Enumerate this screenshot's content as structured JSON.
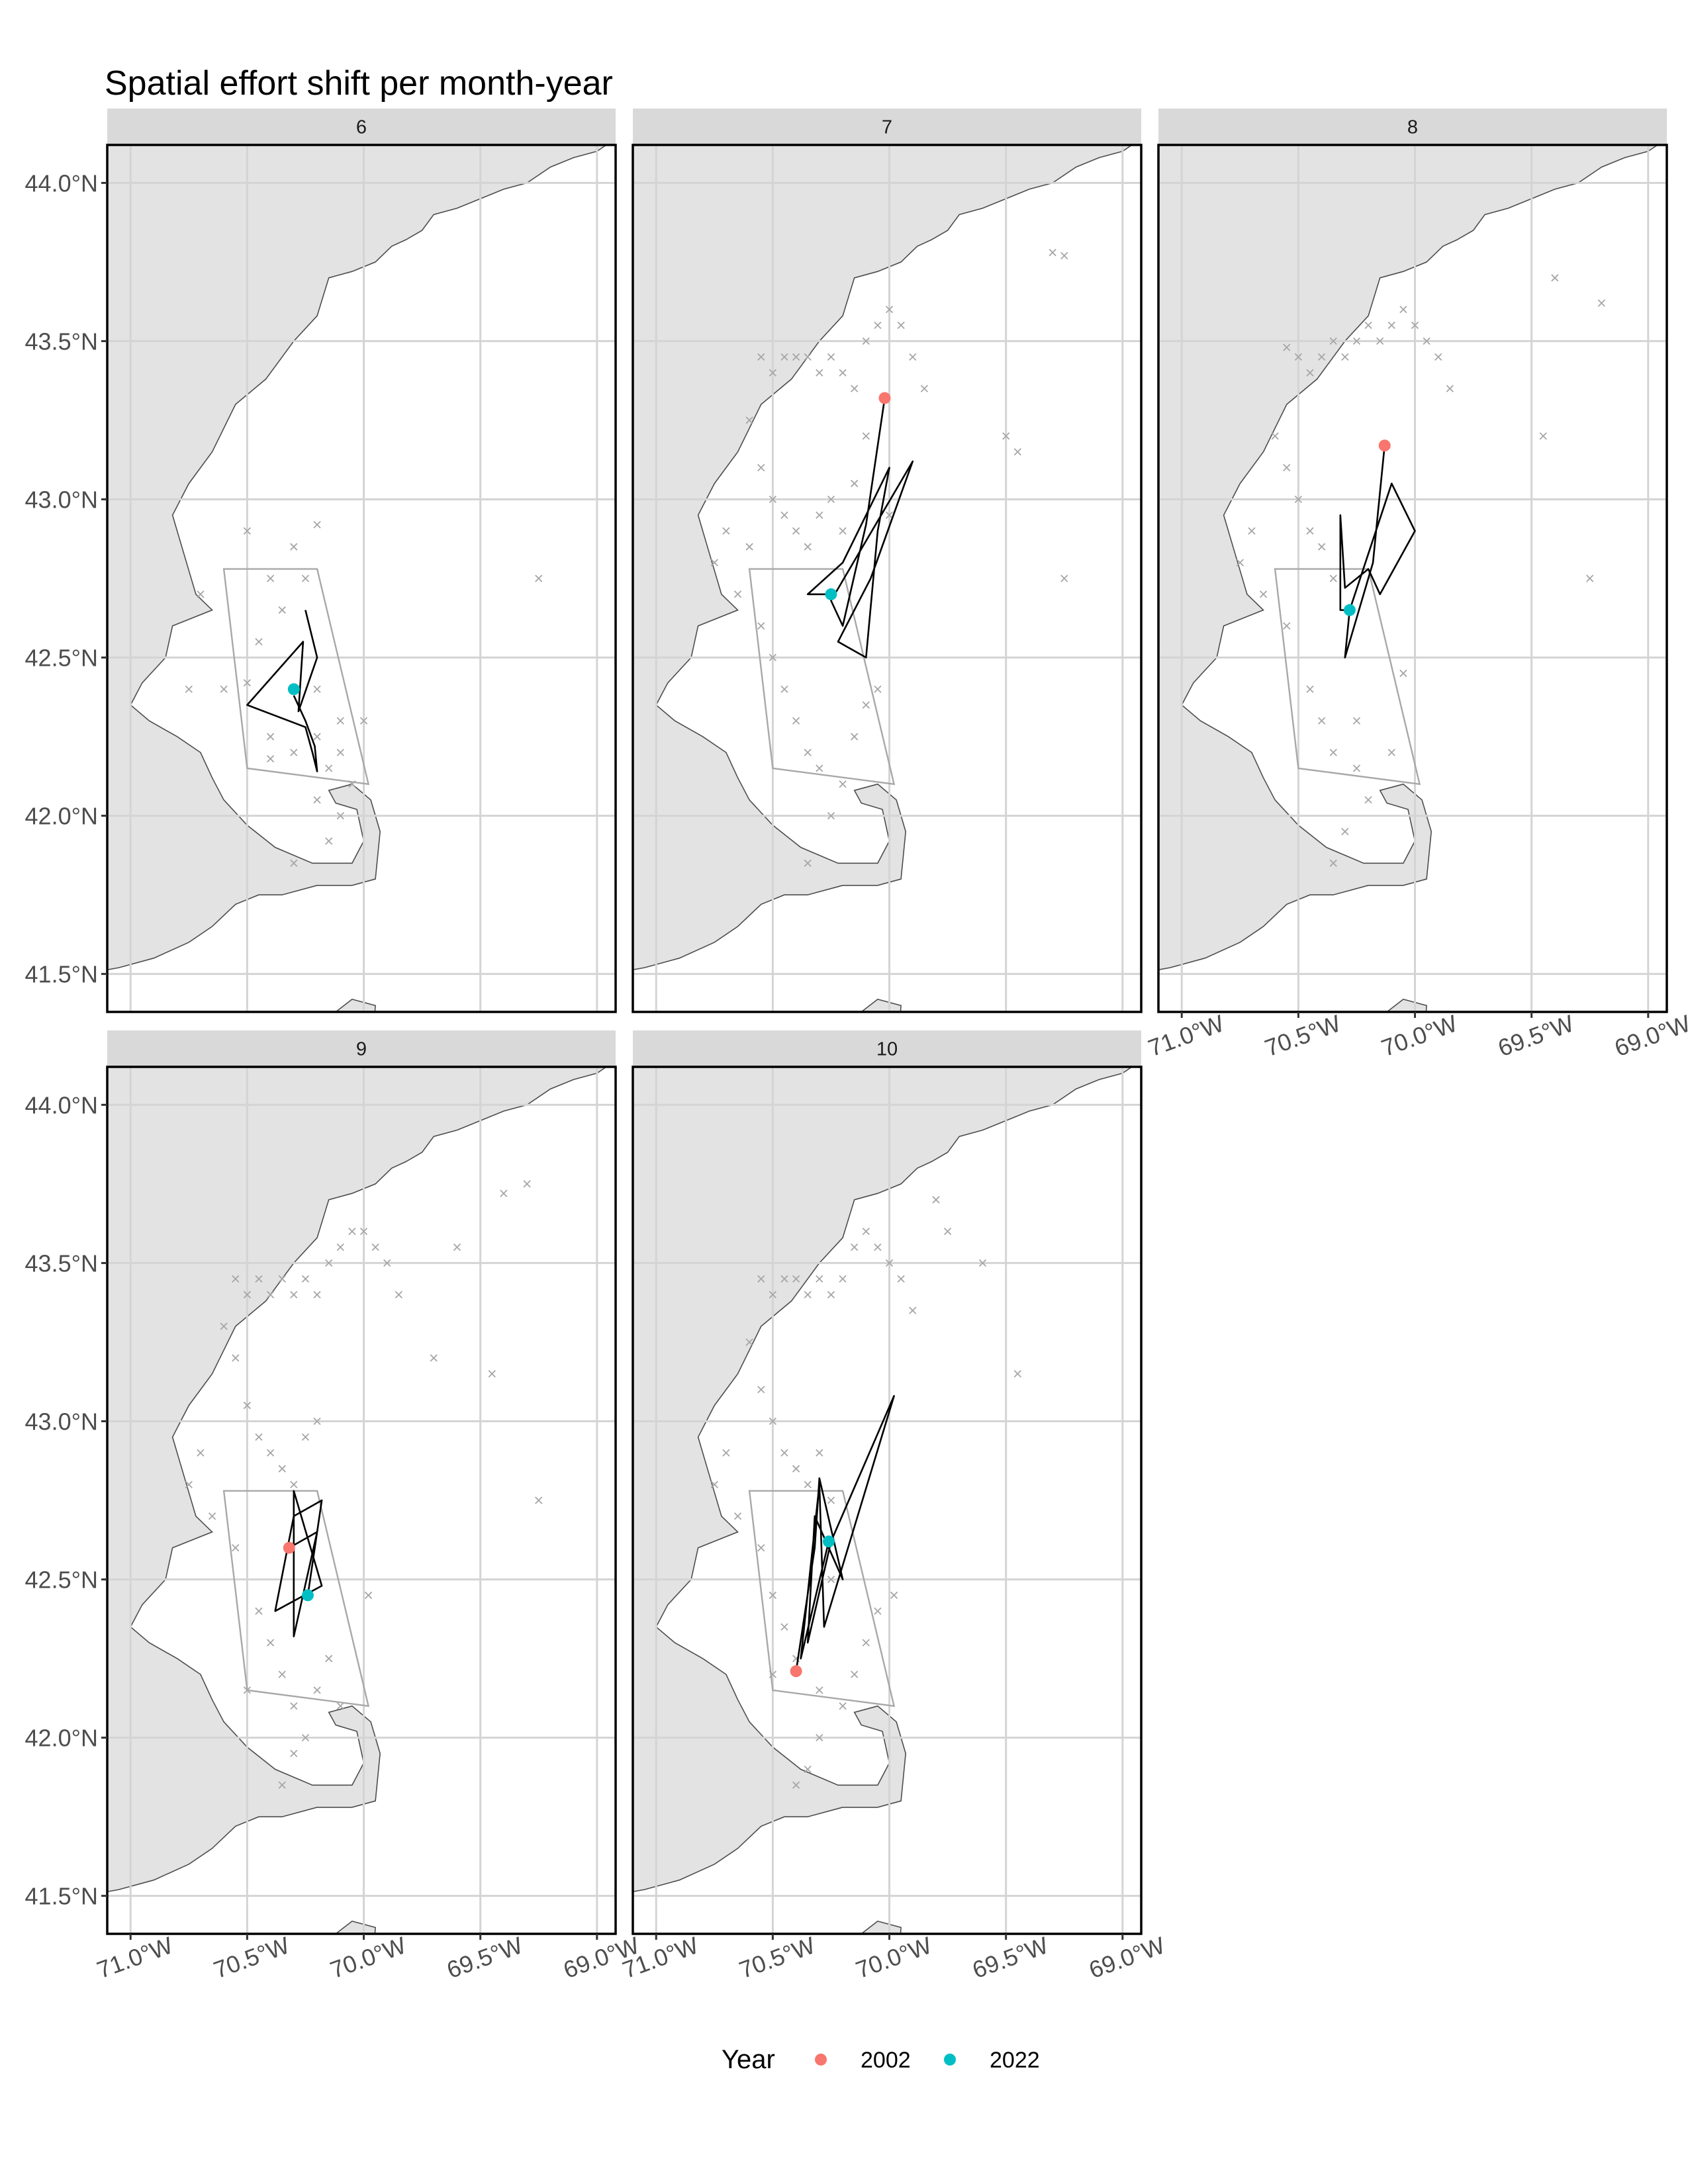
{
  "chart_data": {
    "type": "scatter",
    "title": "Spatial effort shift per month-year",
    "xlabel": "",
    "ylabel": "",
    "xlim": [
      -71.1,
      -68.92
    ],
    "ylim": [
      41.38,
      44.12
    ],
    "x_ticks": [
      -71.0,
      -70.5,
      -70.0,
      -69.5,
      -69.0
    ],
    "x_tick_labels": [
      "71.0°W",
      "70.5°W",
      "70.0°W",
      "69.5°W",
      "69.0°W"
    ],
    "y_ticks": [
      41.5,
      42.0,
      42.5,
      43.0,
      43.5,
      44.0
    ],
    "y_tick_labels": [
      "41.5°N",
      "42.0°N",
      "42.5°N",
      "43.0°N",
      "43.5°N",
      "44.0°N"
    ],
    "grid": true,
    "legend": {
      "title": "Year",
      "placement": "bottom",
      "entries": [
        {
          "label": "2002",
          "color": "#F8766D"
        },
        {
          "label": "2022",
          "color": "#00BFC4"
        }
      ]
    },
    "colors": {
      "land": "#e3e3e3",
      "coast_line": "#4d4d4d",
      "grid": "#d4d4d4",
      "effort_marks": "#a6a6a6",
      "region_outline": "#a8a8a8",
      "track": "#000000",
      "strip": "#d9d9d9",
      "panel_border": "#000000"
    },
    "region_polygon": [
      [
        -70.6,
        42.78
      ],
      [
        -70.2,
        42.78
      ],
      [
        -69.98,
        42.1
      ],
      [
        -70.5,
        42.15
      ]
    ],
    "facets": [
      {
        "label": "6",
        "points": [
          {
            "year": "2022",
            "x": -70.3,
            "y": 42.4
          }
        ],
        "track": [
          [
            -70.25,
            42.65
          ],
          [
            -70.2,
            42.5
          ],
          [
            -70.28,
            42.33
          ],
          [
            -70.26,
            42.55
          ],
          [
            -70.5,
            42.35
          ],
          [
            -70.25,
            42.28
          ],
          [
            -70.22,
            42.2
          ],
          [
            -70.2,
            42.14
          ],
          [
            -70.21,
            42.22
          ],
          [
            -70.25,
            42.3
          ],
          [
            -70.3,
            42.38
          ]
        ],
        "effort": [
          [
            -70.5,
            42.9
          ],
          [
            -70.4,
            42.75
          ],
          [
            -70.3,
            42.85
          ],
          [
            -70.2,
            42.92
          ],
          [
            -70.35,
            42.65
          ],
          [
            -70.45,
            42.55
          ],
          [
            -70.5,
            42.42
          ],
          [
            -70.6,
            42.4
          ],
          [
            -70.2,
            42.4
          ],
          [
            -70.1,
            42.3
          ],
          [
            -70.2,
            42.25
          ],
          [
            -70.3,
            42.2
          ],
          [
            -70.15,
            42.15
          ],
          [
            -70.1,
            42.2
          ],
          [
            -70.05,
            42.1
          ],
          [
            -70.2,
            42.05
          ],
          [
            -70.0,
            42.3
          ],
          [
            -70.1,
            42.0
          ],
          [
            -70.15,
            41.92
          ],
          [
            -70.3,
            41.85
          ],
          [
            -69.25,
            42.75
          ],
          [
            -70.25,
            42.75
          ],
          [
            -70.4,
            42.25
          ],
          [
            -70.4,
            42.18
          ],
          [
            -70.75,
            42.4
          ],
          [
            -70.7,
            42.7
          ]
        ]
      },
      {
        "label": "7",
        "points": [
          {
            "year": "2002",
            "x": -70.02,
            "y": 43.32
          },
          {
            "year": "2022",
            "x": -70.25,
            "y": 42.7
          }
        ],
        "track": [
          [
            -70.02,
            43.32
          ],
          [
            -70.1,
            42.92
          ],
          [
            -70.2,
            42.6
          ],
          [
            -70.25,
            42.68
          ],
          [
            -69.9,
            43.12
          ],
          [
            -70.08,
            42.75
          ],
          [
            -70.22,
            42.55
          ],
          [
            -70.1,
            42.5
          ],
          [
            -70.05,
            42.9
          ],
          [
            -70.0,
            43.1
          ],
          [
            -70.2,
            42.8
          ],
          [
            -70.35,
            42.7
          ],
          [
            -70.25,
            42.7
          ]
        ],
        "effort": [
          [
            -70.55,
            43.45
          ],
          [
            -70.5,
            43.4
          ],
          [
            -70.45,
            43.45
          ],
          [
            -70.4,
            43.45
          ],
          [
            -70.35,
            43.45
          ],
          [
            -70.3,
            43.4
          ],
          [
            -70.25,
            43.45
          ],
          [
            -70.2,
            43.4
          ],
          [
            -70.15,
            43.35
          ],
          [
            -70.1,
            43.5
          ],
          [
            -70.05,
            43.55
          ],
          [
            -70.0,
            43.6
          ],
          [
            -69.95,
            43.55
          ],
          [
            -69.9,
            43.45
          ],
          [
            -69.85,
            43.35
          ],
          [
            -69.3,
            43.78
          ],
          [
            -69.25,
            43.77
          ],
          [
            -69.5,
            43.2
          ],
          [
            -69.45,
            43.15
          ],
          [
            -70.6,
            43.25
          ],
          [
            -70.55,
            43.1
          ],
          [
            -70.5,
            43.0
          ],
          [
            -70.45,
            42.95
          ],
          [
            -70.4,
            42.9
          ],
          [
            -70.35,
            42.85
          ],
          [
            -70.3,
            42.95
          ],
          [
            -70.25,
            43.0
          ],
          [
            -70.2,
            42.9
          ],
          [
            -70.6,
            42.85
          ],
          [
            -70.7,
            42.9
          ],
          [
            -70.75,
            42.8
          ],
          [
            -70.65,
            42.7
          ],
          [
            -70.55,
            42.6
          ],
          [
            -70.5,
            42.5
          ],
          [
            -70.45,
            42.4
          ],
          [
            -70.4,
            42.3
          ],
          [
            -70.35,
            42.2
          ],
          [
            -70.3,
            42.15
          ],
          [
            -70.2,
            42.1
          ],
          [
            -70.15,
            42.25
          ],
          [
            -70.1,
            42.35
          ],
          [
            -70.05,
            42.4
          ],
          [
            -70.25,
            42.0
          ],
          [
            -70.35,
            41.85
          ],
          [
            -69.25,
            42.75
          ],
          [
            -70.15,
            43.05
          ],
          [
            -70.1,
            43.2
          ],
          [
            -70.0,
            42.95
          ]
        ]
      },
      {
        "label": "8",
        "points": [
          {
            "year": "2002",
            "x": -70.13,
            "y": 43.17
          },
          {
            "year": "2022",
            "x": -70.28,
            "y": 42.65
          }
        ],
        "track": [
          [
            -70.13,
            43.17
          ],
          [
            -70.18,
            42.8
          ],
          [
            -70.3,
            42.5
          ],
          [
            -70.28,
            42.65
          ],
          [
            -70.1,
            43.05
          ],
          [
            -70.0,
            42.9
          ],
          [
            -70.15,
            42.7
          ],
          [
            -70.2,
            42.78
          ],
          [
            -70.3,
            42.72
          ],
          [
            -70.32,
            42.95
          ],
          [
            -70.32,
            42.65
          ],
          [
            -70.28,
            42.65
          ]
        ],
        "effort": [
          [
            -70.55,
            43.48
          ],
          [
            -70.5,
            43.45
          ],
          [
            -70.45,
            43.4
          ],
          [
            -70.4,
            43.45
          ],
          [
            -70.35,
            43.5
          ],
          [
            -70.3,
            43.45
          ],
          [
            -70.25,
            43.5
          ],
          [
            -70.2,
            43.55
          ],
          [
            -70.15,
            43.5
          ],
          [
            -70.1,
            43.55
          ],
          [
            -70.05,
            43.6
          ],
          [
            -70.0,
            43.55
          ],
          [
            -69.95,
            43.5
          ],
          [
            -69.9,
            43.45
          ],
          [
            -69.85,
            43.35
          ],
          [
            -69.4,
            43.7
          ],
          [
            -69.2,
            43.62
          ],
          [
            -69.45,
            43.2
          ],
          [
            -70.6,
            43.2
          ],
          [
            -70.55,
            43.1
          ],
          [
            -70.5,
            43.0
          ],
          [
            -70.45,
            42.9
          ],
          [
            -70.4,
            42.85
          ],
          [
            -70.35,
            42.75
          ],
          [
            -70.7,
            42.9
          ],
          [
            -70.75,
            42.8
          ],
          [
            -70.65,
            42.7
          ],
          [
            -70.55,
            42.6
          ],
          [
            -70.45,
            42.4
          ],
          [
            -70.4,
            42.3
          ],
          [
            -70.35,
            42.2
          ],
          [
            -70.25,
            42.15
          ],
          [
            -70.2,
            42.05
          ],
          [
            -70.3,
            41.95
          ],
          [
            -70.35,
            41.85
          ],
          [
            -70.1,
            42.2
          ],
          [
            -70.05,
            42.45
          ],
          [
            -69.25,
            42.75
          ],
          [
            -70.25,
            42.3
          ]
        ]
      },
      {
        "label": "9",
        "points": [
          {
            "year": "2002",
            "x": -70.32,
            "y": 42.6
          },
          {
            "year": "2022",
            "x": -70.24,
            "y": 42.45
          }
        ],
        "track": [
          [
            -70.32,
            42.6
          ],
          [
            -70.2,
            42.65
          ],
          [
            -70.3,
            42.32
          ],
          [
            -70.3,
            42.78
          ],
          [
            -70.18,
            42.48
          ],
          [
            -70.38,
            42.4
          ],
          [
            -70.3,
            42.7
          ],
          [
            -70.18,
            42.75
          ],
          [
            -70.24,
            42.45
          ]
        ],
        "effort": [
          [
            -70.55,
            43.45
          ],
          [
            -70.5,
            43.4
          ],
          [
            -70.45,
            43.45
          ],
          [
            -70.4,
            43.4
          ],
          [
            -70.35,
            43.45
          ],
          [
            -70.3,
            43.4
          ],
          [
            -70.25,
            43.45
          ],
          [
            -70.2,
            43.4
          ],
          [
            -70.15,
            43.5
          ],
          [
            -70.1,
            43.55
          ],
          [
            -70.05,
            43.6
          ],
          [
            -70.0,
            43.6
          ],
          [
            -69.95,
            43.55
          ],
          [
            -69.9,
            43.5
          ],
          [
            -69.85,
            43.4
          ],
          [
            -69.6,
            43.55
          ],
          [
            -69.4,
            43.72
          ],
          [
            -69.3,
            43.75
          ],
          [
            -69.7,
            43.2
          ],
          [
            -69.45,
            43.15
          ],
          [
            -70.6,
            43.3
          ],
          [
            -70.55,
            43.2
          ],
          [
            -70.5,
            43.05
          ],
          [
            -70.45,
            42.95
          ],
          [
            -70.4,
            42.9
          ],
          [
            -70.35,
            42.85
          ],
          [
            -70.3,
            42.8
          ],
          [
            -70.25,
            42.95
          ],
          [
            -70.2,
            43.0
          ],
          [
            -70.7,
            42.9
          ],
          [
            -70.75,
            42.8
          ],
          [
            -70.65,
            42.7
          ],
          [
            -70.55,
            42.6
          ],
          [
            -70.45,
            42.4
          ],
          [
            -70.4,
            42.3
          ],
          [
            -70.35,
            42.2
          ],
          [
            -70.3,
            42.1
          ],
          [
            -70.2,
            42.15
          ],
          [
            -70.15,
            42.25
          ],
          [
            -70.25,
            42.0
          ],
          [
            -70.3,
            41.95
          ],
          [
            -70.35,
            41.85
          ],
          [
            -70.1,
            42.1
          ],
          [
            -69.25,
            42.75
          ],
          [
            -70.5,
            42.15
          ],
          [
            -69.98,
            42.45
          ]
        ]
      },
      {
        "label": "10",
        "points": [
          {
            "year": "2002",
            "x": -70.4,
            "y": 42.21
          },
          {
            "year": "2022",
            "x": -70.26,
            "y": 42.62
          }
        ],
        "track": [
          [
            -70.4,
            42.21
          ],
          [
            -70.32,
            42.6
          ],
          [
            -70.3,
            42.82
          ],
          [
            -70.2,
            42.5
          ],
          [
            -70.32,
            42.7
          ],
          [
            -70.35,
            42.3
          ],
          [
            -70.25,
            42.62
          ],
          [
            -69.98,
            43.08
          ],
          [
            -70.28,
            42.35
          ],
          [
            -70.3,
            42.8
          ],
          [
            -70.38,
            42.25
          ],
          [
            -70.26,
            42.62
          ]
        ],
        "effort": [
          [
            -70.55,
            43.45
          ],
          [
            -70.5,
            43.4
          ],
          [
            -70.45,
            43.45
          ],
          [
            -70.4,
            43.45
          ],
          [
            -70.35,
            43.4
          ],
          [
            -70.3,
            43.45
          ],
          [
            -70.25,
            43.4
          ],
          [
            -70.2,
            43.45
          ],
          [
            -70.15,
            43.55
          ],
          [
            -70.1,
            43.6
          ],
          [
            -70.05,
            43.55
          ],
          [
            -70.0,
            43.5
          ],
          [
            -69.95,
            43.45
          ],
          [
            -69.9,
            43.35
          ],
          [
            -69.8,
            43.7
          ],
          [
            -69.75,
            43.6
          ],
          [
            -69.6,
            43.5
          ],
          [
            -69.45,
            43.15
          ],
          [
            -70.6,
            43.25
          ],
          [
            -70.55,
            43.1
          ],
          [
            -70.5,
            43.0
          ],
          [
            -70.45,
            42.9
          ],
          [
            -70.4,
            42.85
          ],
          [
            -70.35,
            42.8
          ],
          [
            -70.3,
            42.9
          ],
          [
            -70.25,
            42.75
          ],
          [
            -70.7,
            42.9
          ],
          [
            -70.75,
            42.8
          ],
          [
            -70.65,
            42.7
          ],
          [
            -70.55,
            42.6
          ],
          [
            -70.5,
            42.45
          ],
          [
            -70.45,
            42.35
          ],
          [
            -70.4,
            42.25
          ],
          [
            -70.3,
            42.15
          ],
          [
            -70.2,
            42.1
          ],
          [
            -70.15,
            42.2
          ],
          [
            -70.1,
            42.3
          ],
          [
            -70.05,
            42.4
          ],
          [
            -70.3,
            42.0
          ],
          [
            -70.35,
            41.9
          ],
          [
            -70.4,
            41.85
          ],
          [
            -69.98,
            42.45
          ],
          [
            -70.5,
            42.2
          ],
          [
            -70.25,
            42.5
          ]
        ]
      }
    ]
  }
}
